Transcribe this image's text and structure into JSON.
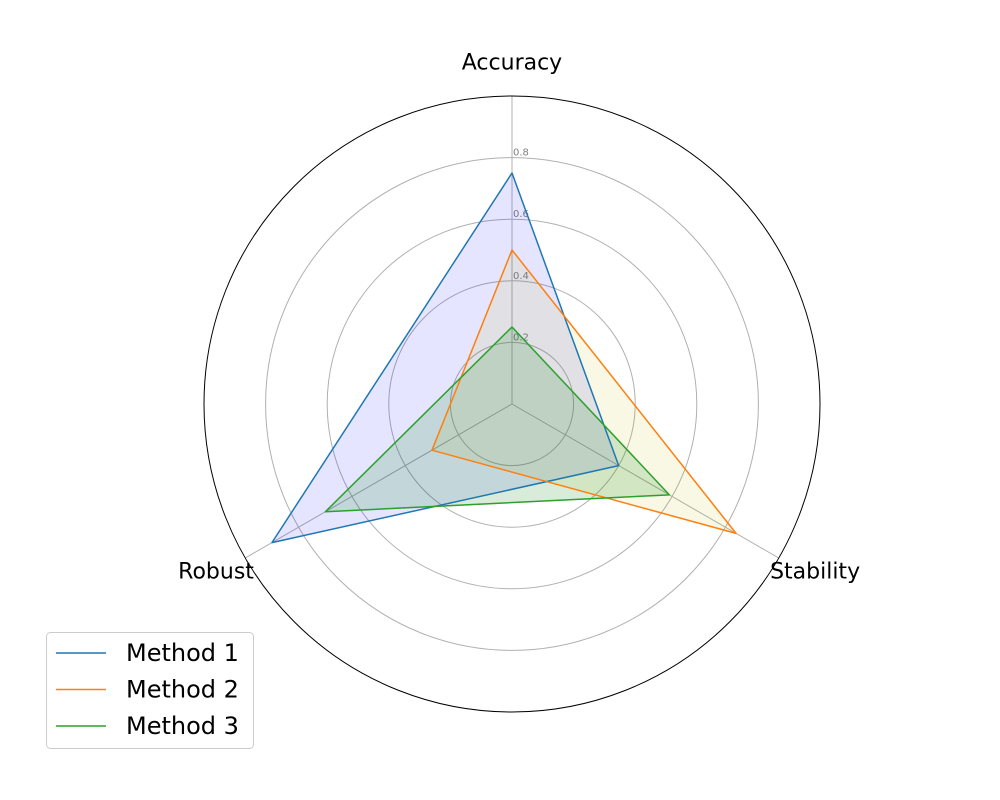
{
  "chart_data": {
    "type": "radar",
    "title": "",
    "axes": [
      "Accuracy",
      "Stability",
      "Robust"
    ],
    "rlim": [
      0,
      1
    ],
    "rticks": [
      0.2,
      0.4,
      0.6,
      0.8
    ],
    "rtick_labels": [
      "0.2",
      "0.4",
      "0.6",
      "0.8"
    ],
    "grid": true,
    "legend_position": "bottom-left",
    "series": [
      {
        "name": "Method 1",
        "values": [
          0.75,
          0.4,
          0.9
        ],
        "line_color": "#1f77b4",
        "fill_color": "#0000ff",
        "fill_opacity": 0.1
      },
      {
        "name": "Method 2",
        "values": [
          0.5,
          0.84,
          0.3
        ],
        "line_color": "#ff7f0e",
        "fill_color": "#bfbf00",
        "fill_opacity": 0.1
      },
      {
        "name": "Method 3",
        "values": [
          0.25,
          0.59,
          0.7
        ],
        "line_color": "#2ca02c",
        "fill_color": "#008000",
        "fill_opacity": 0.15
      }
    ]
  }
}
